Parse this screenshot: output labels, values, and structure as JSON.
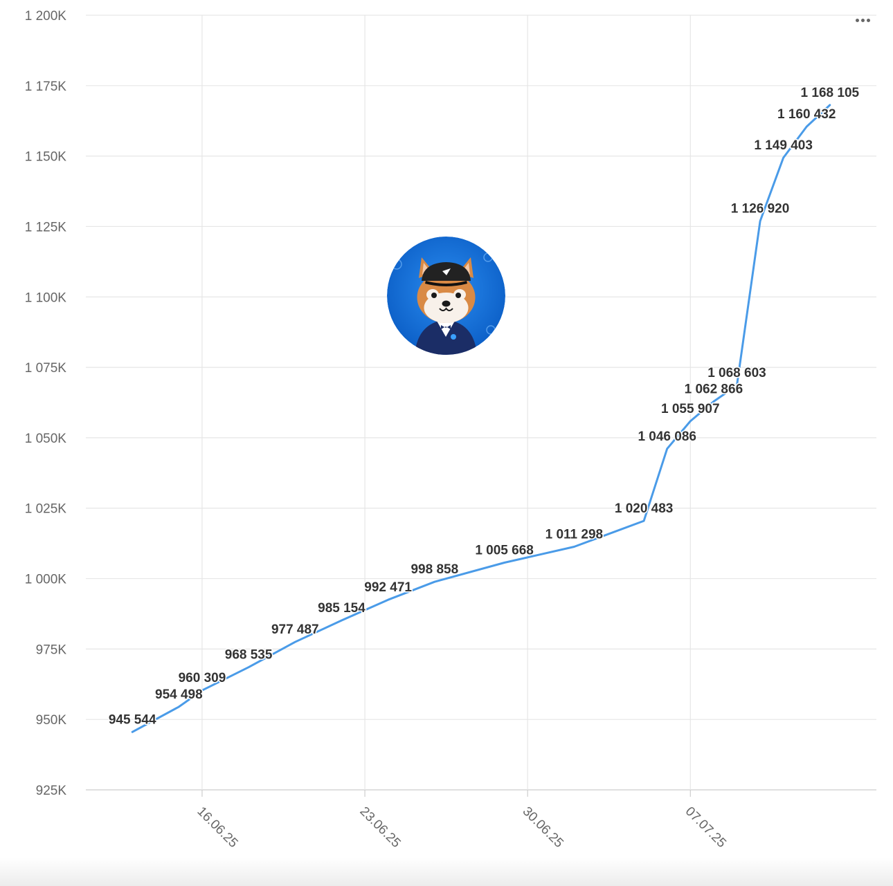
{
  "menu": {
    "icon": "ellipsis-menu-icon"
  },
  "avatar": {
    "icon": "shiba-dog-avatar-icon",
    "background": "#0a6bd8"
  },
  "chart_data": {
    "type": "line",
    "title": "",
    "xlabel": "",
    "ylabel": "",
    "color": "#4a9be8",
    "grid": true,
    "ylim": [
      925000,
      1200000
    ],
    "yticks": [
      925000,
      950000,
      975000,
      1000000,
      1025000,
      1050000,
      1075000,
      1100000,
      1125000,
      1150000,
      1175000,
      1200000
    ],
    "ytick_labels": [
      "925K",
      "950K",
      "975K",
      "1 000K",
      "1 025K",
      "1 050K",
      "1 075K",
      "1 100K",
      "1 125K",
      "1 150K",
      "1 175K",
      "1 200K"
    ],
    "xlim": [
      "2025-06-11",
      "2025-07-15"
    ],
    "xticks": [
      "2025-06-16",
      "2025-06-23",
      "2025-06-30",
      "2025-07-07"
    ],
    "xtick_labels": [
      "16.06.25",
      "23.06.25",
      "30.06.25",
      "07.07.25"
    ],
    "series": [
      {
        "points": [
          {
            "x": "2025-06-13",
            "y": 945544,
            "label": "945 544"
          },
          {
            "x": "2025-06-15",
            "y": 954498,
            "label": "954 498"
          },
          {
            "x": "2025-06-16",
            "y": 960309,
            "label": "960 309"
          },
          {
            "x": "2025-06-18",
            "y": 968535,
            "label": "968 535"
          },
          {
            "x": "2025-06-20",
            "y": 977487,
            "label": "977 487"
          },
          {
            "x": "2025-06-22",
            "y": 985154,
            "label": "985 154"
          },
          {
            "x": "2025-06-24",
            "y": 992471,
            "label": "992 471"
          },
          {
            "x": "2025-06-26",
            "y": 998858,
            "label": "998 858"
          },
          {
            "x": "2025-06-29",
            "y": 1005668,
            "label": "1 005 668"
          },
          {
            "x": "2025-07-02",
            "y": 1011298,
            "label": "1 011 298"
          },
          {
            "x": "2025-07-05",
            "y": 1020483,
            "label": "1 020 483"
          },
          {
            "x": "2025-07-06",
            "y": 1046086,
            "label": "1 046 086"
          },
          {
            "x": "2025-07-07",
            "y": 1055907,
            "label": "1 055 907"
          },
          {
            "x": "2025-07-08",
            "y": 1062866,
            "label": "1 062 866"
          },
          {
            "x": "2025-07-09",
            "y": 1068603,
            "label": "1 068 603"
          },
          {
            "x": "2025-07-10",
            "y": 1126920,
            "label": "1 126 920"
          },
          {
            "x": "2025-07-11",
            "y": 1149403,
            "label": "1 149 403"
          },
          {
            "x": "2025-07-12",
            "y": 1160432,
            "label": "1 160 432"
          },
          {
            "x": "2025-07-13",
            "y": 1168105,
            "label": "1 168 105"
          }
        ]
      }
    ]
  }
}
